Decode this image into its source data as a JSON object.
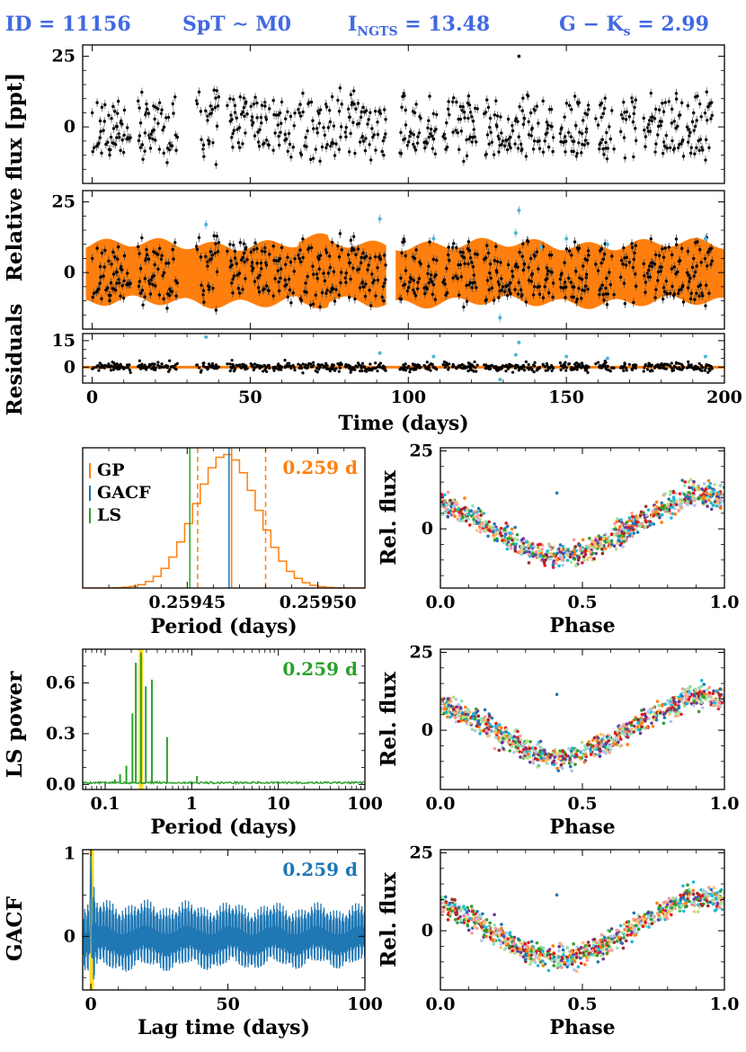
{
  "header": {
    "id_text": "ID = 11156",
    "spt_text": "SpT ∼ M0",
    "imag_text": "I",
    "imag_sub": "NGTS",
    "imag_val": " = 13.48",
    "color_text": "G − K",
    "color_sub": "s",
    "color_val": " = 2.99"
  },
  "colors": {
    "header": "#4169e1",
    "gp": "#ff7f0e",
    "gacf": "#1f77b4",
    "ls": "#2ca02c",
    "highlight": "#ffd700",
    "points": "#000000",
    "outliers": "#4fb3d9"
  },
  "chart_data": [
    {
      "id": "lightcurve",
      "type": "scatter",
      "title": "",
      "ylabel": "Relative flux [ppt]",
      "xlim": [
        -3,
        200
      ],
      "ylim": [
        -20,
        29
      ],
      "yticks": [
        0,
        25
      ],
      "gaps": [
        [
          12,
          14
        ],
        [
          27,
          33
        ],
        [
          40,
          42
        ],
        [
          49,
          50
        ],
        [
          56,
          57
        ],
        [
          64,
          65
        ],
        [
          79,
          80
        ],
        [
          93,
          97
        ],
        [
          104,
          105
        ],
        [
          109,
          111
        ],
        [
          113,
          114
        ],
        [
          122,
          124
        ],
        [
          146,
          148
        ],
        [
          157,
          159
        ],
        [
          165,
          167
        ],
        [
          172,
          174
        ],
        [
          187,
          188
        ]
      ],
      "envelope_amplitude": 9,
      "noise": 3,
      "points_per_day": 6,
      "seed": 11156
    },
    {
      "id": "gp_model",
      "type": "area",
      "ylabel": "",
      "xlim": [
        -3,
        200
      ],
      "ylim": [
        -20,
        29
      ],
      "yticks": [
        0,
        25
      ],
      "band_half_width": 10
    },
    {
      "id": "residuals",
      "type": "scatter",
      "ylabel": "Residuals",
      "xlabel": "Time (days)",
      "xlim": [
        -3,
        200
      ],
      "ylim": [
        -9,
        19
      ],
      "yticks": [
        0,
        15
      ],
      "xticks": [
        0,
        50,
        100,
        150,
        200
      ],
      "noise": 1.8
    },
    {
      "id": "gp_period",
      "type": "histogram",
      "xlabel": "Period (days)",
      "xlim": [
        0.25941,
        0.259518
      ],
      "xticks": [
        0.25945,
        0.2595
      ],
      "xtick_labels": [
        "0.25945",
        "0.25950"
      ],
      "mean": 0.259465,
      "sigma": 1.2e-05,
      "lines": [
        {
          "series": "GP",
          "x": 0.259467,
          "style": "solid"
        },
        {
          "series": "GP",
          "x": 0.259454,
          "style": "dashed"
        },
        {
          "series": "GP",
          "x": 0.25948,
          "style": "dashed"
        },
        {
          "series": "GACF",
          "x": 0.259466,
          "style": "solid"
        },
        {
          "series": "LS",
          "x": 0.259451,
          "style": "solid"
        }
      ],
      "legend": [
        "GP",
        "GACF",
        "LS"
      ],
      "annotation": "0.259 d"
    },
    {
      "id": "ls_periodogram",
      "type": "line",
      "xscale": "log",
      "xlabel": "Period (days)",
      "ylabel": "LS power",
      "xlim": [
        0.055,
        100
      ],
      "ylim": [
        -0.03,
        0.8
      ],
      "yticks": [
        0,
        0.3,
        0.6
      ],
      "ytick_labels": [
        "0.0",
        "0.3",
        "0.6"
      ],
      "xticks": [
        0.1,
        1,
        10,
        100
      ],
      "xtick_labels": [
        "0.1",
        "1",
        "10",
        "100"
      ],
      "peaks": [
        {
          "period": 0.1297,
          "power": 0.03
        },
        {
          "period": 0.1487,
          "power": 0.06
        },
        {
          "period": 0.1757,
          "power": 0.11
        },
        {
          "period": 0.2067,
          "power": 0.42
        },
        {
          "period": 0.2259,
          "power": 0.72
        },
        {
          "period": 0.2594,
          "power": 0.78
        },
        {
          "period": 0.2947,
          "power": 0.58
        },
        {
          "period": 0.3467,
          "power": 0.62
        },
        {
          "period": 0.5188,
          "power": 0.28
        },
        {
          "period": 1.0,
          "power": 0.02
        },
        {
          "period": 1.15,
          "power": 0.05
        },
        {
          "period": 5.8,
          "power": 0.02
        },
        {
          "period": 9.8,
          "power": 0.015
        },
        {
          "period": 28,
          "power": 0.015
        }
      ],
      "highlight_period": 0.2594,
      "annotation": "0.259 d"
    },
    {
      "id": "gacf",
      "type": "line",
      "xlabel": "Lag time (days)",
      "ylabel": "GACF",
      "xlim": [
        -3,
        100
      ],
      "ylim": [
        -0.65,
        1.05
      ],
      "yticks": [
        0,
        1
      ],
      "xticks": [
        0,
        50,
        100
      ],
      "period": 0.259,
      "beat_period": 2.3,
      "highlight_lag": 0.259,
      "annotation": "0.259 d"
    },
    {
      "id": "phase_fold",
      "type": "scatter",
      "xlabel": "Phase",
      "ylabel": "Rel. flux",
      "xlim": [
        0,
        1
      ],
      "ylim": [
        -19,
        26
      ],
      "yticks": [
        0,
        25
      ],
      "xticks": [
        0,
        0.5,
        1
      ],
      "xtick_labels": [
        "0.0",
        "0.5",
        "1.0"
      ],
      "amplitude": 9,
      "min_phase": 0.42,
      "panels": 3
    }
  ]
}
